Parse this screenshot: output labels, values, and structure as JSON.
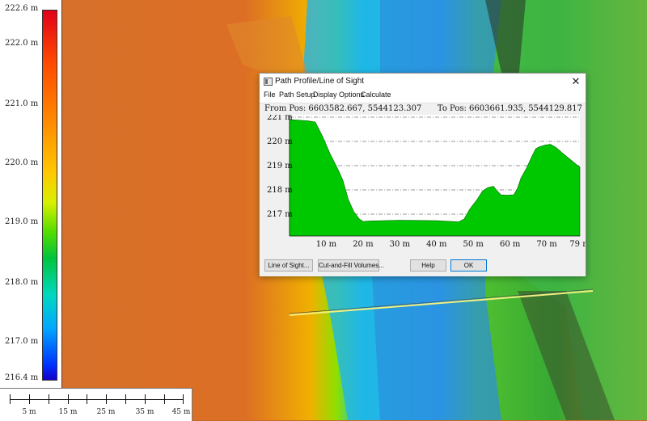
{
  "legend": {
    "labels": [
      "222.6 m",
      "222.0 m",
      "221.0 m",
      "220.0 m",
      "219.0 m",
      "218.0 m",
      "217.0 m",
      "216.4 m"
    ],
    "colors": {
      "high": "#e0001a",
      "mid": "#d8f000",
      "low": "#1600c8"
    }
  },
  "scalebar": {
    "labels": [
      "5 m",
      "15 m",
      "25 m",
      "35 m",
      "45 m"
    ]
  },
  "dialog": {
    "title": "Path Profile/Line of Sight",
    "close_glyph": "✕",
    "menu": [
      "File",
      "Path Setup",
      "Display Options",
      "Calculate"
    ],
    "from_pos": "From Pos: 6603582.667, 5544123.307",
    "to_pos": "To Pos: 6603661.935, 5544129.817",
    "buttons": {
      "line_of_sight": "Line of Sight...",
      "cut_fill": "Cut-and-Fill Volumes...",
      "help": "Help",
      "ok": "OK"
    }
  },
  "chart_data": {
    "type": "area",
    "x_tick_labels": [
      "10 m",
      "20 m",
      "30 m",
      "40 m",
      "50 m",
      "60 m",
      "70 m",
      "79 m"
    ],
    "y_tick_labels": [
      "221 m",
      "220 m",
      "219 m",
      "218 m",
      "217 m"
    ],
    "xlim": [
      0,
      79
    ],
    "ylim": [
      216.1,
      221.1
    ],
    "x": [
      0,
      2,
      5,
      7,
      9,
      11,
      13,
      14.5,
      16,
      17.5,
      19,
      20,
      22,
      30,
      40,
      46,
      47.5,
      49,
      51,
      52.5,
      54,
      55.5,
      56.5,
      57.5,
      59,
      61,
      62,
      63,
      64.5,
      66,
      67,
      68,
      69.5,
      71,
      72.5,
      74,
      76,
      78,
      79
    ],
    "y": [
      220.9,
      220.88,
      220.85,
      220.8,
      220.2,
      219.5,
      218.9,
      218.4,
      217.6,
      217.1,
      216.8,
      216.7,
      216.72,
      216.75,
      216.73,
      216.68,
      216.8,
      217.2,
      217.6,
      217.95,
      218.1,
      218.15,
      217.95,
      217.8,
      217.78,
      217.8,
      218.05,
      218.5,
      218.9,
      219.4,
      219.7,
      219.78,
      219.85,
      219.88,
      219.75,
      219.55,
      219.3,
      219.05,
      218.95
    ],
    "fill_color": "#00c800",
    "grid": true
  }
}
